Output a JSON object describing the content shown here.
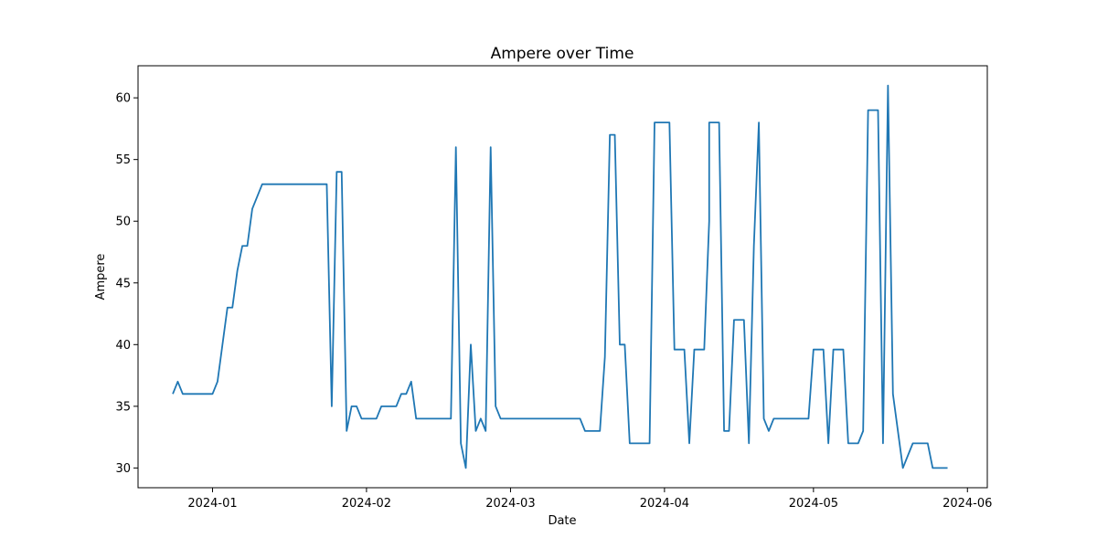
{
  "chart_data": {
    "type": "line",
    "title": "Ampere over Time",
    "xlabel": "Date",
    "ylabel": "Ampere",
    "xlim": [
      "2023-12-17",
      "2024-06-05"
    ],
    "ylim": [
      28.4,
      62.6
    ],
    "x_ticks": [
      "2024-01",
      "2024-02",
      "2024-03",
      "2024-04",
      "2024-05",
      "2024-06"
    ],
    "y_ticks": [
      30,
      35,
      40,
      45,
      50,
      55,
      60
    ],
    "grid": false,
    "legend": "none",
    "series": [
      {
        "color": "#1f77b4",
        "points": [
          [
            "2023-12-24",
            36
          ],
          [
            "2023-12-25",
            37
          ],
          [
            "2023-12-26",
            36
          ],
          [
            "2023-12-27",
            36
          ],
          [
            "2023-12-28",
            36
          ],
          [
            "2023-12-29",
            36
          ],
          [
            "2023-12-30",
            36
          ],
          [
            "2023-12-31",
            36
          ],
          [
            "2024-01-01",
            36
          ],
          [
            "2024-01-02",
            37
          ],
          [
            "2024-01-03",
            40
          ],
          [
            "2024-01-04",
            43
          ],
          [
            "2024-01-05",
            43
          ],
          [
            "2024-01-06",
            46
          ],
          [
            "2024-01-07",
            48
          ],
          [
            "2024-01-08",
            48
          ],
          [
            "2024-01-09",
            51
          ],
          [
            "2024-01-10",
            52
          ],
          [
            "2024-01-11",
            53
          ],
          [
            "2024-01-14",
            53
          ],
          [
            "2024-01-17",
            53
          ],
          [
            "2024-01-20",
            53
          ],
          [
            "2024-01-23",
            53
          ],
          [
            "2024-01-24",
            53
          ],
          [
            "2024-01-25",
            35
          ],
          [
            "2024-01-26",
            54
          ],
          [
            "2024-01-27",
            54
          ],
          [
            "2024-01-28",
            33
          ],
          [
            "2024-01-29",
            35
          ],
          [
            "2024-01-30",
            35
          ],
          [
            "2024-01-31",
            34
          ],
          [
            "2024-02-01",
            34
          ],
          [
            "2024-02-02",
            34
          ],
          [
            "2024-02-03",
            34
          ],
          [
            "2024-02-04",
            35
          ],
          [
            "2024-02-05",
            35
          ],
          [
            "2024-02-06",
            35
          ],
          [
            "2024-02-07",
            35
          ],
          [
            "2024-02-08",
            36
          ],
          [
            "2024-02-09",
            36
          ],
          [
            "2024-02-10",
            37
          ],
          [
            "2024-02-11",
            34
          ],
          [
            "2024-02-14",
            34
          ],
          [
            "2024-02-17",
            34
          ],
          [
            "2024-02-18",
            34
          ],
          [
            "2024-02-19",
            56
          ],
          [
            "2024-02-20",
            32
          ],
          [
            "2024-02-21",
            30
          ],
          [
            "2024-02-22",
            40
          ],
          [
            "2024-02-23",
            33
          ],
          [
            "2024-02-24",
            34
          ],
          [
            "2024-02-25",
            33
          ],
          [
            "2024-02-26",
            56
          ],
          [
            "2024-02-27",
            35
          ],
          [
            "2024-02-28",
            34
          ],
          [
            "2024-03-03",
            34
          ],
          [
            "2024-03-08",
            34
          ],
          [
            "2024-03-13",
            34
          ],
          [
            "2024-03-15",
            34
          ],
          [
            "2024-03-16",
            33
          ],
          [
            "2024-03-18",
            33
          ],
          [
            "2024-03-19",
            33
          ],
          [
            "2024-03-20",
            39
          ],
          [
            "2024-03-21",
            57
          ],
          [
            "2024-03-22",
            57
          ],
          [
            "2024-03-23",
            40
          ],
          [
            "2024-03-24",
            40
          ],
          [
            "2024-03-25",
            32
          ],
          [
            "2024-03-27",
            32
          ],
          [
            "2024-03-29",
            32
          ],
          [
            "2024-03-30",
            58
          ],
          [
            "2024-04-01",
            58
          ],
          [
            "2024-04-02",
            58
          ],
          [
            "2024-04-03",
            39.6
          ],
          [
            "2024-04-04",
            39.6
          ],
          [
            "2024-04-05",
            39.6
          ],
          [
            "2024-04-06",
            32
          ],
          [
            "2024-04-07",
            39.6
          ],
          [
            "2024-04-08",
            39.6
          ],
          [
            "2024-04-09",
            39.6
          ],
          [
            "2024-04-10",
            50
          ],
          [
            "2024-04-10",
            58
          ],
          [
            "2024-04-12",
            58
          ],
          [
            "2024-04-13",
            33
          ],
          [
            "2024-04-14",
            33
          ],
          [
            "2024-04-15",
            42
          ],
          [
            "2024-04-17",
            42
          ],
          [
            "2024-04-18",
            32
          ],
          [
            "2024-04-19",
            48
          ],
          [
            "2024-04-20",
            58
          ],
          [
            "2024-04-21",
            34
          ],
          [
            "2024-04-22",
            33
          ],
          [
            "2024-04-23",
            34
          ],
          [
            "2024-04-25",
            34
          ],
          [
            "2024-04-28",
            34
          ],
          [
            "2024-04-30",
            34
          ],
          [
            "2024-05-01",
            39.6
          ],
          [
            "2024-05-03",
            39.6
          ],
          [
            "2024-05-04",
            32
          ],
          [
            "2024-05-05",
            39.6
          ],
          [
            "2024-05-07",
            39.6
          ],
          [
            "2024-05-08",
            32
          ],
          [
            "2024-05-10",
            32
          ],
          [
            "2024-05-11",
            33
          ],
          [
            "2024-05-12",
            59
          ],
          [
            "2024-05-14",
            59
          ],
          [
            "2024-05-15",
            32
          ],
          [
            "2024-05-16",
            61
          ],
          [
            "2024-05-17",
            36
          ],
          [
            "2024-05-19",
            30
          ],
          [
            "2024-05-21",
            32
          ],
          [
            "2024-05-24",
            32
          ],
          [
            "2024-05-25",
            30
          ],
          [
            "2024-05-28",
            30
          ]
        ]
      }
    ]
  }
}
